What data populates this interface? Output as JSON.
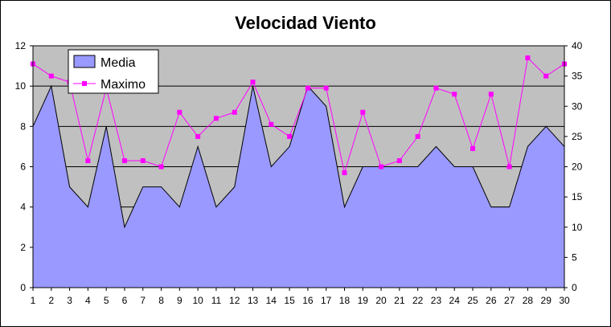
{
  "chart_data": {
    "type": "area",
    "title": "Velocidad Viento",
    "xlabel": "",
    "ylabel": "",
    "categories": [
      "1",
      "2",
      "3",
      "4",
      "5",
      "6",
      "7",
      "8",
      "9",
      "10",
      "11",
      "12",
      "13",
      "14",
      "15",
      "16",
      "17",
      "18",
      "19",
      "20",
      "21",
      "22",
      "23",
      "24",
      "25",
      "26",
      "27",
      "28",
      "29",
      "30"
    ],
    "series": [
      {
        "name": "Media",
        "type": "area",
        "axis": "left",
        "values": [
          8,
          10,
          5,
          4,
          8,
          3,
          5,
          5,
          4,
          7,
          4,
          5,
          10,
          6,
          7,
          10,
          9,
          4,
          6,
          6,
          6,
          6,
          7,
          6,
          6,
          4,
          4,
          7,
          8,
          7
        ]
      },
      {
        "name": "Maximo",
        "type": "line",
        "axis": "right",
        "values": [
          37,
          35,
          34,
          21,
          33,
          21,
          21,
          20,
          29,
          25,
          28,
          29,
          34,
          27,
          25,
          33,
          33,
          19,
          29,
          20,
          21,
          25,
          33,
          32,
          23,
          32,
          20,
          38,
          35,
          37
        ]
      }
    ],
    "y_left": {
      "range": [
        0,
        12
      ],
      "ticks": [
        "0",
        "2",
        "4",
        "6",
        "8",
        "10",
        "12"
      ]
    },
    "y_right": {
      "range": [
        0,
        40
      ],
      "ticks": [
        "0",
        "5",
        "10",
        "15",
        "20",
        "25",
        "30",
        "35",
        "40"
      ]
    },
    "grid": "horizontal major",
    "legend": "top-left",
    "colors": {
      "plot_background": "#c0c0c0",
      "area_fill": "#9999ff",
      "line_marker": "#ff00ff",
      "gridline": "#000000"
    }
  }
}
